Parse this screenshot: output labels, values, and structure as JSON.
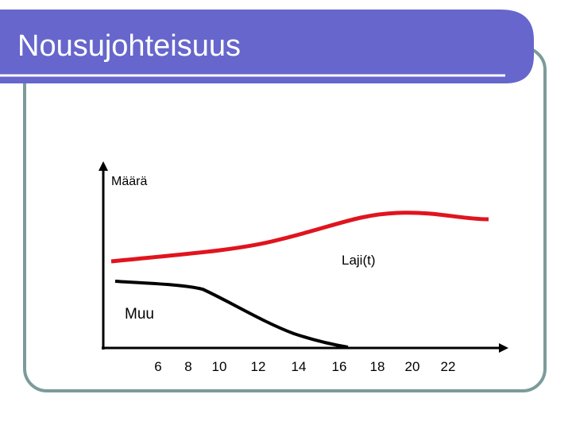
{
  "slide": {
    "title": "Nousujohteisuus",
    "y_axis_label": "Määrä",
    "curve_labels": [
      "Laji(t)",
      "Muu"
    ],
    "x_ticks": [
      6,
      8,
      10,
      12,
      14,
      16,
      18,
      20,
      22
    ]
  }
}
